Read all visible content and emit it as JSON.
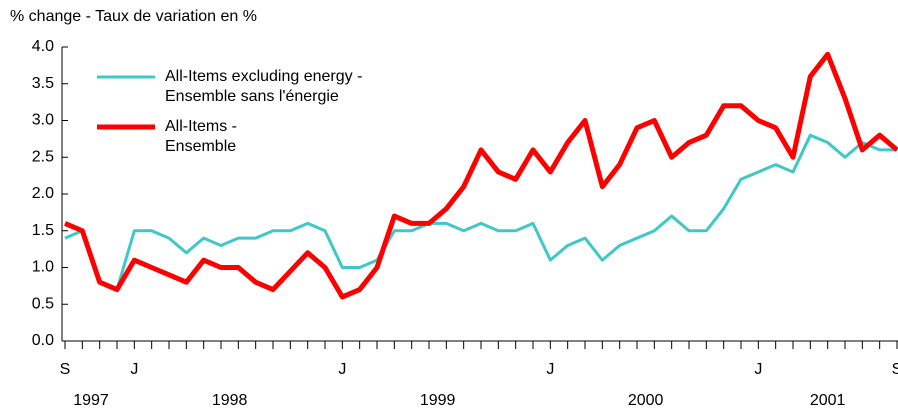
{
  "chart_data": {
    "type": "line",
    "title": "% change - Taux de variation en %",
    "categories": [
      "S",
      null,
      null,
      null,
      "J",
      null,
      null,
      null,
      null,
      null,
      null,
      null,
      null,
      null,
      null,
      null,
      "J",
      null,
      null,
      null,
      null,
      null,
      null,
      null,
      null,
      null,
      null,
      null,
      "J",
      null,
      null,
      null,
      null,
      null,
      null,
      null,
      null,
      null,
      null,
      null,
      "J",
      null,
      null,
      null,
      null,
      null,
      null,
      null,
      "S"
    ],
    "years": [
      "1997",
      "1998",
      "1999",
      "2000",
      "2001"
    ],
    "series": [
      {
        "name": "All-Items excluding energy -\nEnsemble sans l'énergie",
        "color": "#3ec8c8",
        "values": [
          1.4,
          1.5,
          0.8,
          0.7,
          1.5,
          1.5,
          1.4,
          1.2,
          1.4,
          1.3,
          1.4,
          1.4,
          1.5,
          1.5,
          1.6,
          1.5,
          1.0,
          1.0,
          1.1,
          1.5,
          1.5,
          1.6,
          1.6,
          1.5,
          1.6,
          1.5,
          1.5,
          1.6,
          1.1,
          1.3,
          1.4,
          1.1,
          1.3,
          1.4,
          1.5,
          1.7,
          1.5,
          1.5,
          1.8,
          2.2,
          2.3,
          2.4,
          2.3,
          2.8,
          2.7,
          2.5,
          2.7,
          2.6,
          2.6
        ]
      },
      {
        "name": "All-Items -\nEnsemble",
        "color": "#ff0000",
        "values": [
          1.6,
          1.5,
          0.8,
          0.7,
          1.1,
          1.0,
          0.9,
          0.8,
          1.1,
          1.0,
          1.0,
          0.8,
          0.7,
          0.95,
          1.2,
          1.0,
          0.6,
          0.7,
          1.0,
          1.7,
          1.6,
          1.6,
          1.8,
          2.1,
          2.6,
          2.3,
          2.2,
          2.6,
          2.3,
          2.7,
          3.0,
          2.1,
          2.4,
          2.9,
          3.0,
          2.5,
          2.7,
          2.8,
          3.2,
          3.2,
          3.0,
          2.9,
          2.5,
          3.6,
          3.9,
          3.3,
          2.6,
          2.8,
          2.6
        ]
      }
    ],
    "ylim": [
      0,
      4
    ],
    "yticks": [
      {
        "value": 0,
        "label": "0.0"
      },
      {
        "value": 0.5,
        "label": "0.5"
      },
      {
        "value": 1,
        "label": "1.0"
      },
      {
        "value": 1.5,
        "label": "1.5"
      },
      {
        "value": 2,
        "label": "2.0"
      },
      {
        "value": 2.5,
        "label": "2.5"
      },
      {
        "value": 3,
        "label": "3.0"
      },
      {
        "value": 3.5,
        "label": "3.5"
      },
      {
        "value": 4,
        "label": "4.0"
      }
    ],
    "grid": false
  }
}
